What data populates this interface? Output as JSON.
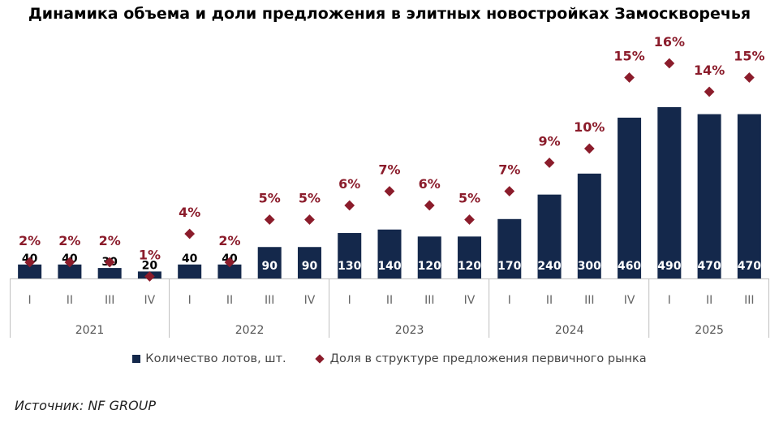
{
  "title": "Динамика объема и доли предложения в элитных новостройках Замоскворечья",
  "source": "Источник: NF GROUP",
  "colors": {
    "bar": "#14284b",
    "marker": "#8b1c2b",
    "axis": "#bfbfbf",
    "bar_label": "#ffffff",
    "bar_label_small": "#000000"
  },
  "chart_data": {
    "type": "bar",
    "categories": [
      "I",
      "II",
      "III",
      "IV",
      "I",
      "II",
      "III",
      "IV",
      "I",
      "II",
      "III",
      "IV",
      "I",
      "II",
      "III",
      "IV",
      "I",
      "II",
      "III"
    ],
    "years": [
      {
        "label": "2021",
        "quarters": 4
      },
      {
        "label": "2022",
        "quarters": 4
      },
      {
        "label": "2023",
        "quarters": 4
      },
      {
        "label": "2024",
        "quarters": 4
      },
      {
        "label": "2025",
        "quarters": 3
      }
    ],
    "series": [
      {
        "name": "Количество лотов, шт.",
        "type": "bar",
        "values": [
          40,
          40,
          30,
          20,
          40,
          40,
          90,
          90,
          130,
          140,
          120,
          120,
          170,
          240,
          300,
          460,
          490,
          470,
          470
        ]
      },
      {
        "name": "Доля в структуре предложения первичного рынка",
        "type": "scatter",
        "values": [
          2,
          2,
          2,
          1,
          4,
          2,
          5,
          5,
          6,
          7,
          6,
          5,
          7,
          9,
          10,
          15,
          16,
          14,
          15
        ],
        "labels": [
          "2%",
          "2%",
          "2%",
          "1%",
          "4%",
          "2%",
          "5%",
          "5%",
          "6%",
          "7%",
          "6%",
          "5%",
          "7%",
          "9%",
          "10%",
          "15%",
          "16%",
          "14%",
          "15%"
        ]
      }
    ],
    "bar_labels": [
      "40",
      "40",
      "30",
      "20",
      "40",
      "40",
      "90",
      "90",
      "130",
      "140",
      "120",
      "120",
      "170",
      "240",
      "300",
      "460",
      "490",
      "470",
      "470"
    ],
    "legend_position": "bottom",
    "grid": false
  }
}
